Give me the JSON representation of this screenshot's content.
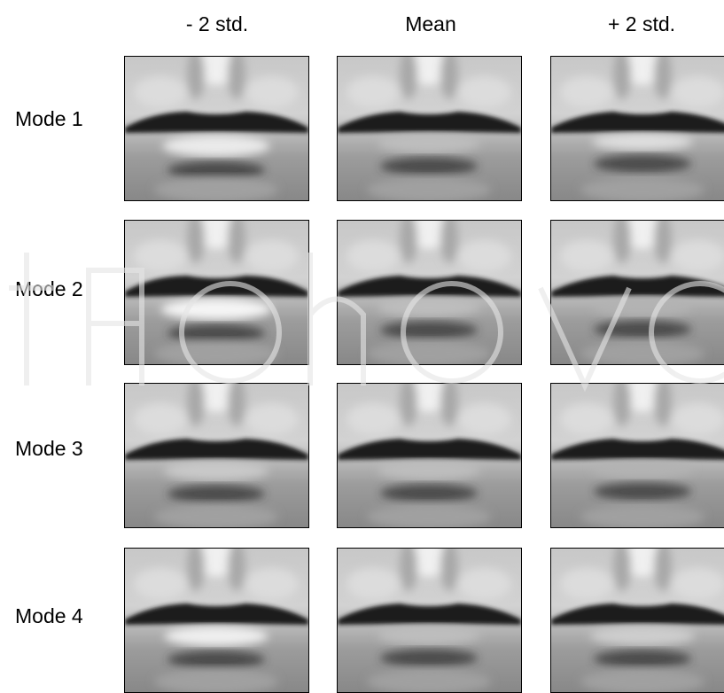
{
  "columns": [
    "- 2 std.",
    "Mean",
    "+ 2 std."
  ],
  "rows": [
    {
      "label": "Mode 1",
      "cells": [
        {
          "lip_gap": 0.55,
          "lower_bright": 0.85,
          "smile": 0.2
        },
        {
          "lip_gap": 0.3,
          "lower_bright": 0.45,
          "smile": 0.0
        },
        {
          "lip_gap": 0.15,
          "lower_bright": 0.75,
          "smile": -0.1
        }
      ]
    },
    {
      "label": "Mode 2",
      "cells": [
        {
          "lip_gap": 0.5,
          "lower_bright": 0.95,
          "smile": 0.35
        },
        {
          "lip_gap": 0.3,
          "lower_bright": 0.45,
          "smile": 0.0
        },
        {
          "lip_gap": 0.25,
          "lower_bright": 0.35,
          "smile": -0.15
        }
      ]
    },
    {
      "label": "Mode 3",
      "cells": [
        {
          "lip_gap": 0.35,
          "lower_bright": 0.55,
          "smile": 0.1
        },
        {
          "lip_gap": 0.3,
          "lower_bright": 0.45,
          "smile": 0.0
        },
        {
          "lip_gap": 0.2,
          "lower_bright": 0.35,
          "smile": -0.05
        }
      ]
    },
    {
      "label": "Mode 4",
      "cells": [
        {
          "lip_gap": 0.4,
          "lower_bright": 0.9,
          "smile": 0.05
        },
        {
          "lip_gap": 0.3,
          "lower_bright": 0.45,
          "smile": 0.0
        },
        {
          "lip_gap": 0.35,
          "lower_bright": 0.6,
          "smile": 0.1
        }
      ]
    }
  ]
}
